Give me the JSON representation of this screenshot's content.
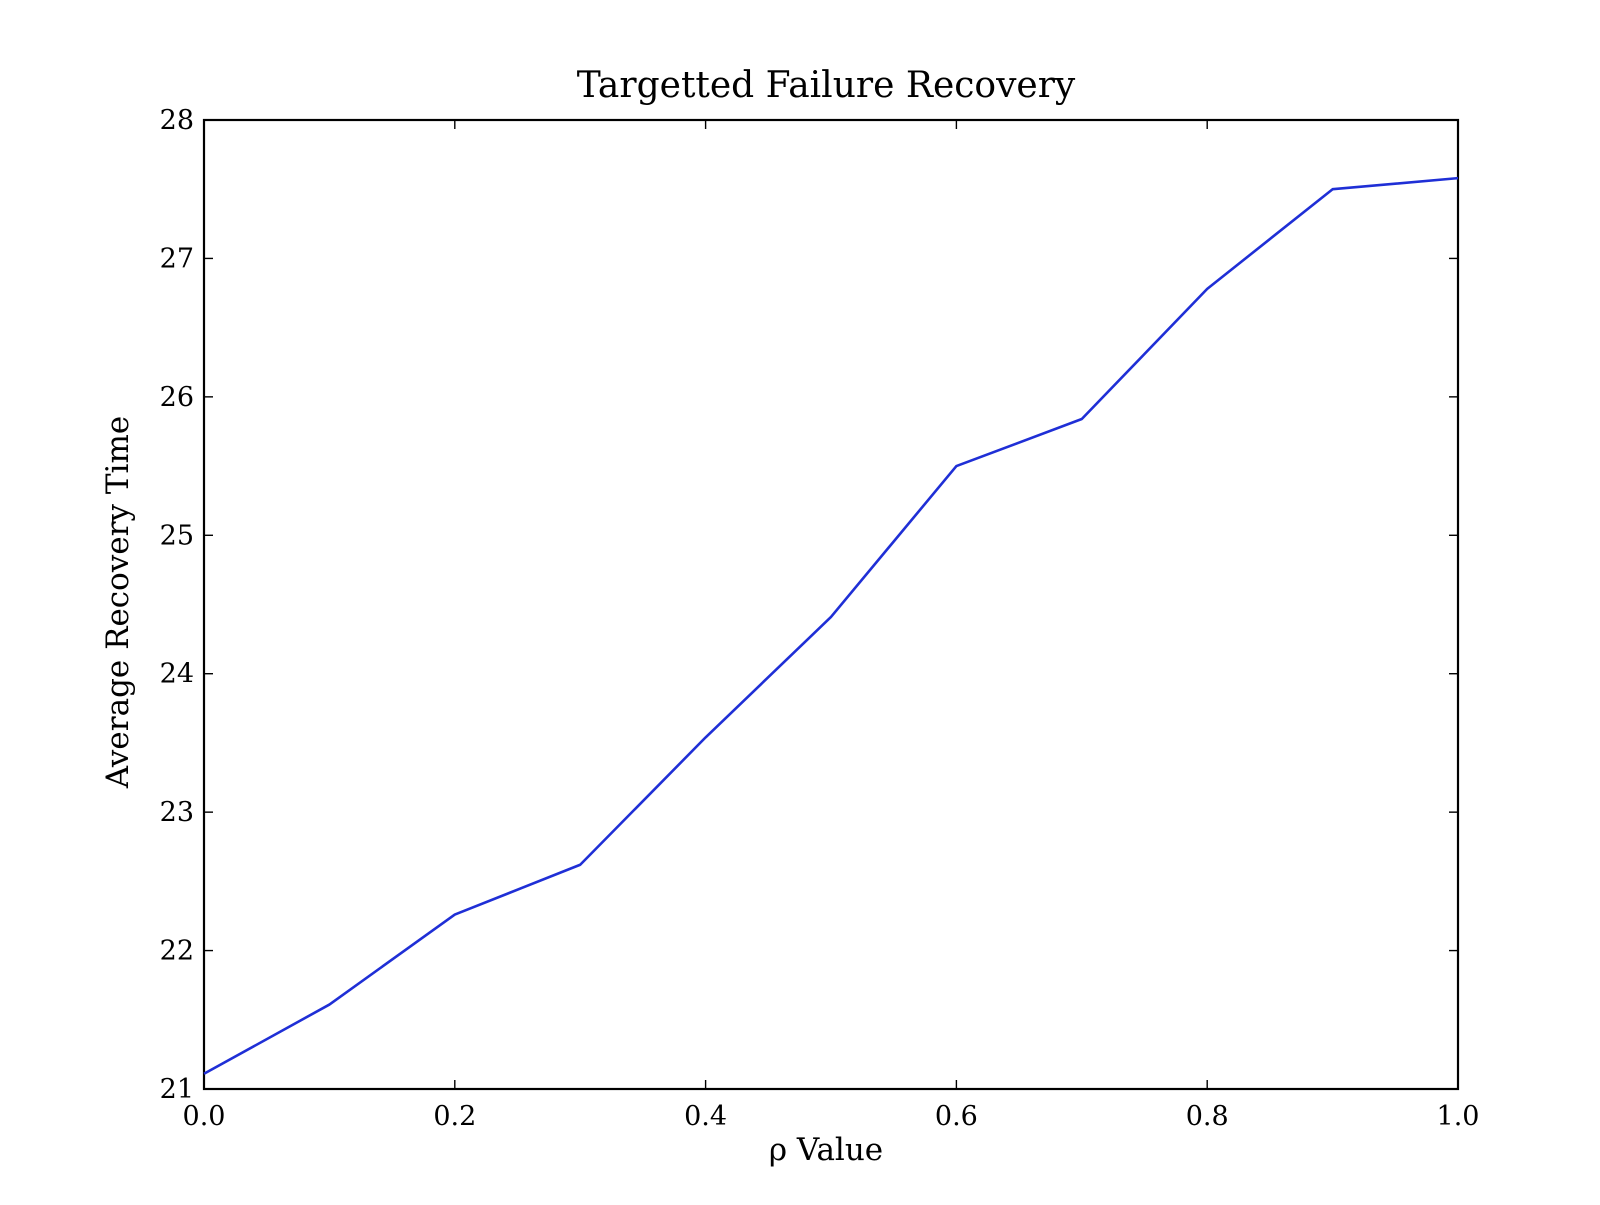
{
  "chart_data": {
    "type": "line",
    "title": "Targetted Failure Recovery",
    "xlabel": "ρ Value",
    "ylabel": "Average Recovery Time",
    "xlim": [
      0.0,
      1.0
    ],
    "ylim": [
      21,
      28
    ],
    "x_ticks": [
      "0.0",
      "0.2",
      "0.4",
      "0.6",
      "0.8",
      "1.0"
    ],
    "y_ticks": [
      "21",
      "22",
      "23",
      "24",
      "25",
      "26",
      "27",
      "28"
    ],
    "grid": false,
    "legend": "none",
    "series": [
      {
        "color": "#1f2fd6",
        "x": [
          0.0,
          0.1,
          0.2,
          0.3,
          0.4,
          0.5,
          0.6,
          0.7,
          0.8,
          0.9,
          1.0
        ],
        "y": [
          21.11,
          21.61,
          22.26,
          22.62,
          23.54,
          24.41,
          25.5,
          25.84,
          26.78,
          27.5,
          27.58
        ]
      }
    ]
  }
}
